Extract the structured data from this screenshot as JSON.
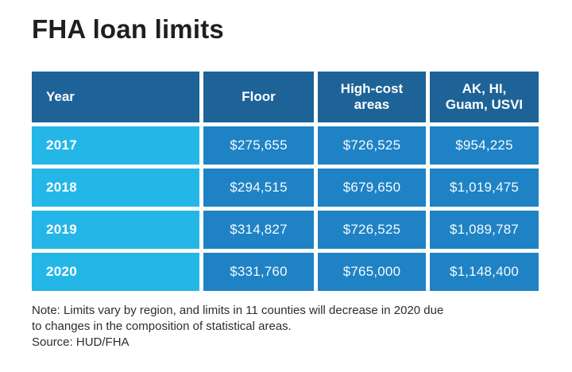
{
  "colors": {
    "header_bg": "#1d6397",
    "value_bg": "#1f82c4",
    "year_bg": "#25b6e8",
    "text": "#ffffff"
  },
  "chart_data": {
    "type": "table",
    "title": "FHA loan limits",
    "columns": [
      "Year",
      "Floor",
      "High-cost areas",
      "AK, HI, Guam, USVI"
    ],
    "rows": [
      [
        "2017",
        "$275,655",
        "$726,525",
        "$954,225"
      ],
      [
        "2018",
        "$294,515",
        "$679,650",
        "$1,019,475"
      ],
      [
        "2019",
        "$314,827",
        "$726,525",
        "$1,089,787"
      ],
      [
        "2020",
        "$331,760",
        "$765,000",
        "$1,148,400"
      ]
    ],
    "note": "Note: Limits vary by region, and limits in 11 counties will decrease in 2020 due to changes in the composition of statistical areas.",
    "source": "Source: HUD/FHA"
  },
  "table": {
    "header": {
      "year": "Year",
      "floor": "Floor",
      "high_cost_line1": "High-cost",
      "high_cost_line2": "areas",
      "ak_line1": "AK, HI,",
      "ak_line2": "Guam, USVI"
    }
  },
  "footer": {
    "note_lines": [
      "Note: Limits vary by region, and limits in 11 counties will decrease in 2020 due",
      "to changes in the composition of statistical areas."
    ],
    "source": "Source: HUD/FHA"
  }
}
